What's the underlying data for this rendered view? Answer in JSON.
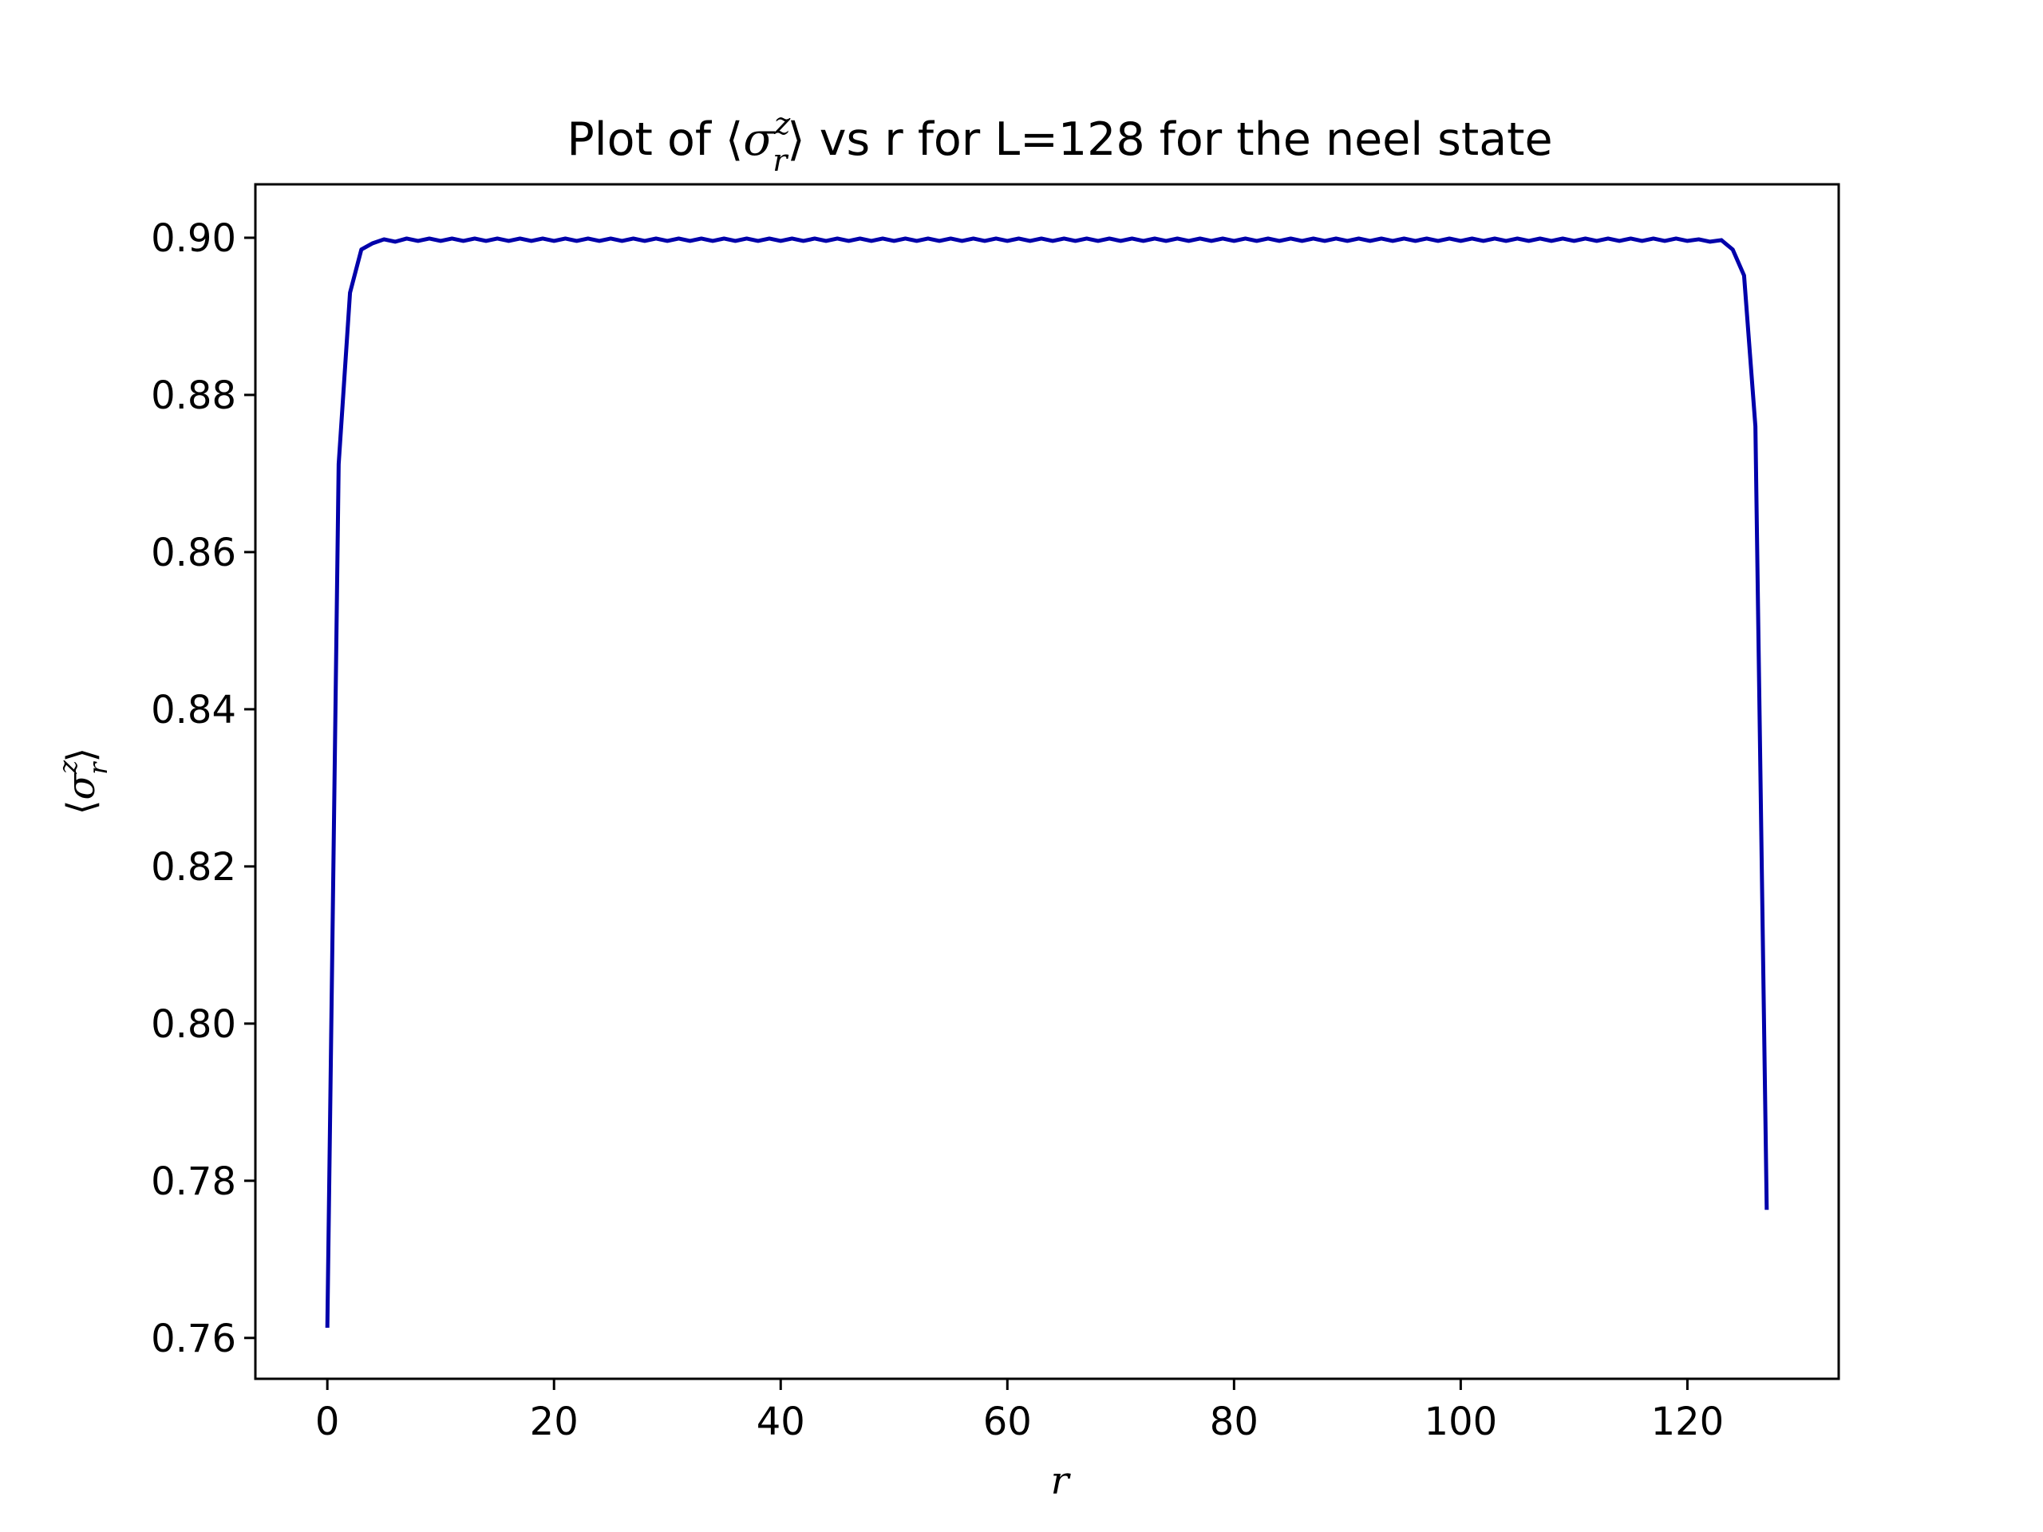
{
  "chart_data": {
    "type": "line",
    "title": {
      "prefix": "Plot of ⟨",
      "symbol": "σ",
      "superscript": "z",
      "subscript": "r",
      "suffix": "⟩ vs r for L=128 for the neel state"
    },
    "xlabel": "r",
    "ylabel": {
      "open": "⟨",
      "symbol": "σ",
      "superscript": "z",
      "subscript": "r",
      "close": "⟩"
    },
    "xlim": [
      -6.35,
      133.35
    ],
    "ylim": [
      0.7548,
      0.9068
    ],
    "x_ticks": [
      0,
      20,
      40,
      60,
      80,
      100,
      120
    ],
    "x_tick_labels": [
      "0",
      "20",
      "40",
      "60",
      "80",
      "100",
      "120"
    ],
    "y_ticks": [
      0.76,
      0.78,
      0.8,
      0.82,
      0.84,
      0.86,
      0.88,
      0.9
    ],
    "y_tick_labels": [
      "0.76",
      "0.78",
      "0.80",
      "0.82",
      "0.84",
      "0.86",
      "0.88",
      "0.90"
    ],
    "grid": false,
    "series": [
      {
        "color": "#0000aa",
        "x_start": 0,
        "x_step": 1,
        "values": [
          0.7613,
          0.8712,
          0.893,
          0.8985,
          0.8993,
          0.8998,
          0.8995,
          0.8999,
          0.8996,
          0.8999,
          0.8996,
          0.8999,
          0.8996,
          0.8999,
          0.8996,
          0.8999,
          0.8996,
          0.8999,
          0.8996,
          0.8999,
          0.8996,
          0.8999,
          0.8996,
          0.8999,
          0.8996,
          0.8999,
          0.8996,
          0.8999,
          0.8996,
          0.8999,
          0.8996,
          0.8999,
          0.8996,
          0.8999,
          0.8996,
          0.8999,
          0.8996,
          0.8999,
          0.8996,
          0.8999,
          0.8996,
          0.8999,
          0.8996,
          0.8999,
          0.8996,
          0.8999,
          0.8996,
          0.8999,
          0.8996,
          0.8999,
          0.8996,
          0.8999,
          0.8996,
          0.8999,
          0.8996,
          0.8999,
          0.8996,
          0.8999,
          0.8996,
          0.8999,
          0.8996,
          0.8999,
          0.8996,
          0.8999,
          0.8996,
          0.8999,
          0.8996,
          0.8999,
          0.8996,
          0.8999,
          0.8996,
          0.8999,
          0.8996,
          0.8999,
          0.8996,
          0.8999,
          0.8996,
          0.8999,
          0.8996,
          0.8999,
          0.8996,
          0.8999,
          0.8996,
          0.8999,
          0.8996,
          0.8999,
          0.8996,
          0.8999,
          0.8996,
          0.8999,
          0.8996,
          0.8999,
          0.8996,
          0.8999,
          0.8996,
          0.8999,
          0.8996,
          0.8999,
          0.8996,
          0.8999,
          0.8996,
          0.8999,
          0.8996,
          0.8999,
          0.8996,
          0.8999,
          0.8996,
          0.8999,
          0.8996,
          0.8999,
          0.8996,
          0.8999,
          0.8996,
          0.8999,
          0.8996,
          0.8999,
          0.8996,
          0.8999,
          0.8996,
          0.8999,
          0.8996,
          0.8998,
          0.8995,
          0.8997,
          0.8985,
          0.8952,
          0.876,
          0.7763
        ]
      }
    ]
  }
}
